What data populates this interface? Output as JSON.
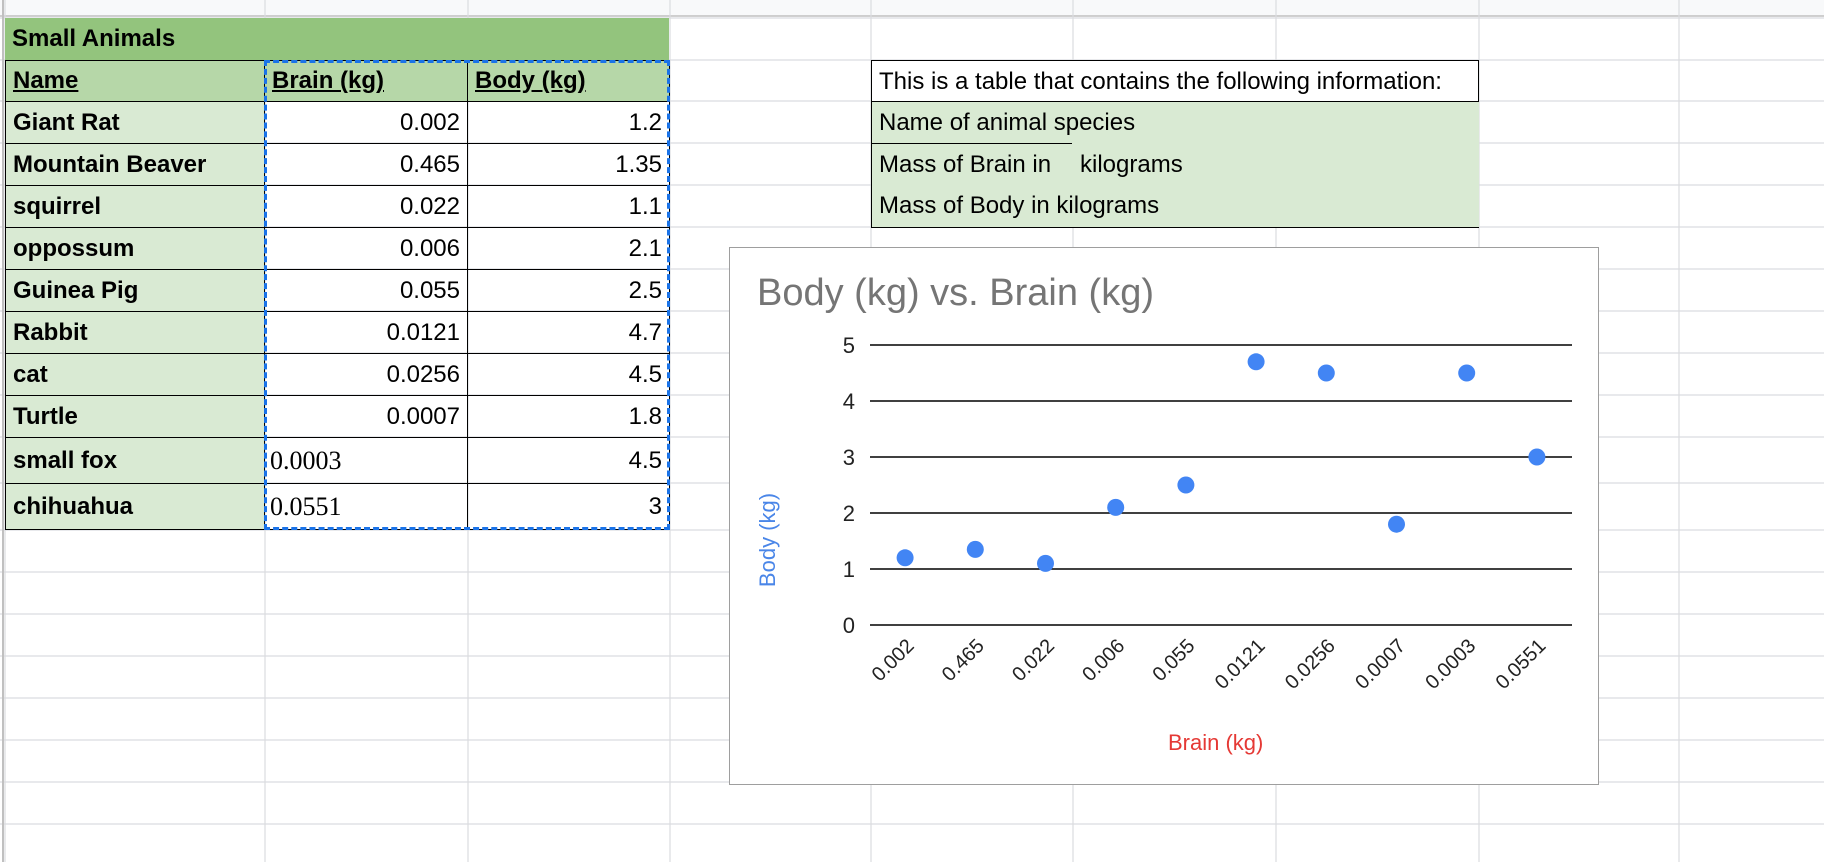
{
  "table": {
    "title": "Small Animals",
    "headers": [
      "Name",
      "Brain (kg)",
      "Body (kg)"
    ],
    "rows": [
      {
        "name": "Giant Rat",
        "brain": "0.002",
        "body": "1.2"
      },
      {
        "name": "Mountain Beaver",
        "brain": "0.465",
        "body": "1.35"
      },
      {
        "name": "squirrel",
        "brain": "0.022",
        "body": "1.1"
      },
      {
        "name": "oppossum",
        "brain": "0.006",
        "body": "2.1"
      },
      {
        "name": "Guinea Pig",
        "brain": "0.055",
        "body": "2.5"
      },
      {
        "name": "Rabbit",
        "brain": "0.0121",
        "body": "4.7"
      },
      {
        "name": "cat",
        "brain": "0.0256",
        "body": "4.5"
      },
      {
        "name": "Turtle",
        "brain": "0.0007",
        "body": "1.8"
      },
      {
        "name": "small fox",
        "brain": "0.0003",
        "body": "4.5"
      },
      {
        "name": "chihuahua",
        "brain": "0.0551",
        "body": "3"
      }
    ]
  },
  "info": {
    "line1": "This is a table that contains the following information:",
    "line2": "Name of animal species",
    "line3a": "Mass of Brain in",
    "line3b": "kilograms",
    "line4": "Mass of Body in kilograms"
  },
  "colors": {
    "header_green": "#93c47d",
    "mid_green": "#b6d7a8",
    "light_green": "#d9ead3",
    "selection_blue": "#1a73e8",
    "point_blue": "#4285f4",
    "x_title_red": "#e53935",
    "y_title_blue": "#4a86e8"
  },
  "chart_data": {
    "type": "scatter",
    "title": "Body (kg) vs. Brain (kg)",
    "xlabel": "Brain (kg)",
    "ylabel": "Body (kg)",
    "categories": [
      "0.002",
      "0.465",
      "0.022",
      "0.006",
      "0.055",
      "0.0121",
      "0.0256",
      "0.0007",
      "0.0003",
      "0.0551"
    ],
    "values": [
      1.2,
      1.35,
      1.1,
      2.1,
      2.5,
      4.7,
      4.5,
      1.8,
      4.5,
      3
    ],
    "y_ticks": [
      "0",
      "1",
      "2",
      "3",
      "4",
      "5"
    ],
    "ylim": [
      0,
      5
    ],
    "grid": true,
    "legend": "none"
  }
}
